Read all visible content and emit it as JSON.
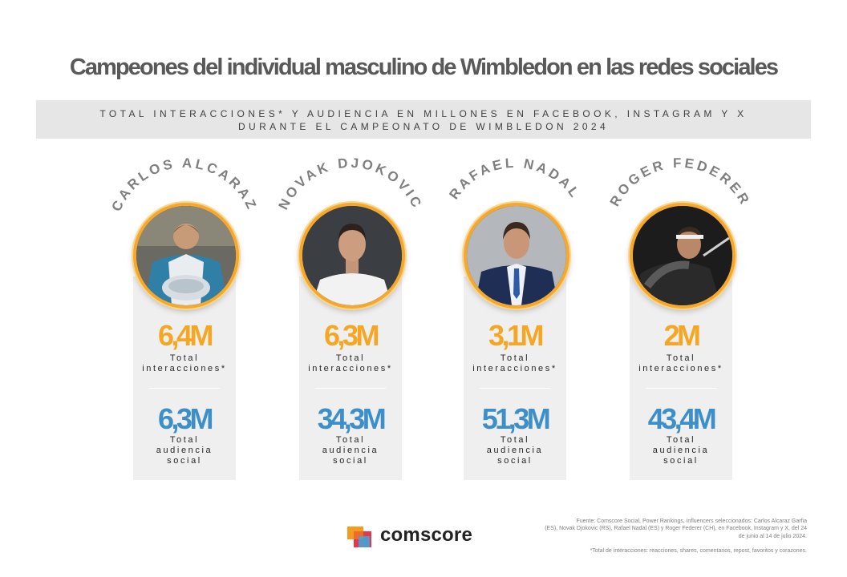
{
  "title": "Campeones del individual masculino de Wimbledon en las redes sociales",
  "subtitle": {
    "line1": "TOTAL INTERACCIONES* Y AUDIENCIA EN MILLONES EN FACEBOOK, INSTAGRAM Y X",
    "line2": "DURANTE EL CAMPEONATO DE WIMBLEDON 2024"
  },
  "labels": {
    "interactions": [
      "Total",
      "interacciones*"
    ],
    "audience": [
      "Total",
      "audiencia",
      "social"
    ]
  },
  "players": [
    {
      "name": "CARLOS ALCARAZ",
      "interactions_label": "6,4M",
      "audience_label": "6,3M"
    },
    {
      "name": "NOVAK DJOKOVIC",
      "interactions_label": "6,3M",
      "audience_label": "34,3M"
    },
    {
      "name": "RAFAEL NADAL",
      "interactions_label": "3,1M",
      "audience_label": "51,3M"
    },
    {
      "name": "ROGER FEDERER",
      "interactions_label": "2M",
      "audience_label": "43,4M"
    }
  ],
  "colors": {
    "interactions": "#f5a623",
    "audience": "#3c8fc8",
    "ring": "#f4a92e",
    "card": "#efefef"
  },
  "chart_data": {
    "type": "table",
    "title": "Campeones del individual masculino de Wimbledon en las redes sociales",
    "subtitle": "TOTAL INTERACCIONES* Y AUDIENCIA EN MILLONES EN FACEBOOK, INSTAGRAM Y X DURANTE EL CAMPEONATO DE WIMBLEDON 2024",
    "categories": [
      "CARLOS ALCARAZ",
      "NOVAK DJOKOVIC",
      "RAFAEL NADAL",
      "ROGER FEDERER"
    ],
    "series": [
      {
        "name": "Total interacciones*",
        "values": [
          6.4,
          6.3,
          3.1,
          2
        ]
      },
      {
        "name": "Total audiencia social",
        "values": [
          6.3,
          34.3,
          51.3,
          43.4
        ]
      }
    ]
  },
  "logo": {
    "text": "comscore"
  },
  "source": {
    "lines": [
      "Fuente: Comscore Social, Power Rankings, influencers seleccionados: Carlos Alcaraz Garfia",
      "(ES), Novak Djokovic (RS), Rafael Nadal (ES) y Roger Federer (CH), en Facebook, Instagram y X, del 24",
      "de junio al 14 de julio 2024."
    ],
    "footnote": "*Total de interacciones: reacciones, shares, comentarios, repost, favoritos y corazones."
  }
}
